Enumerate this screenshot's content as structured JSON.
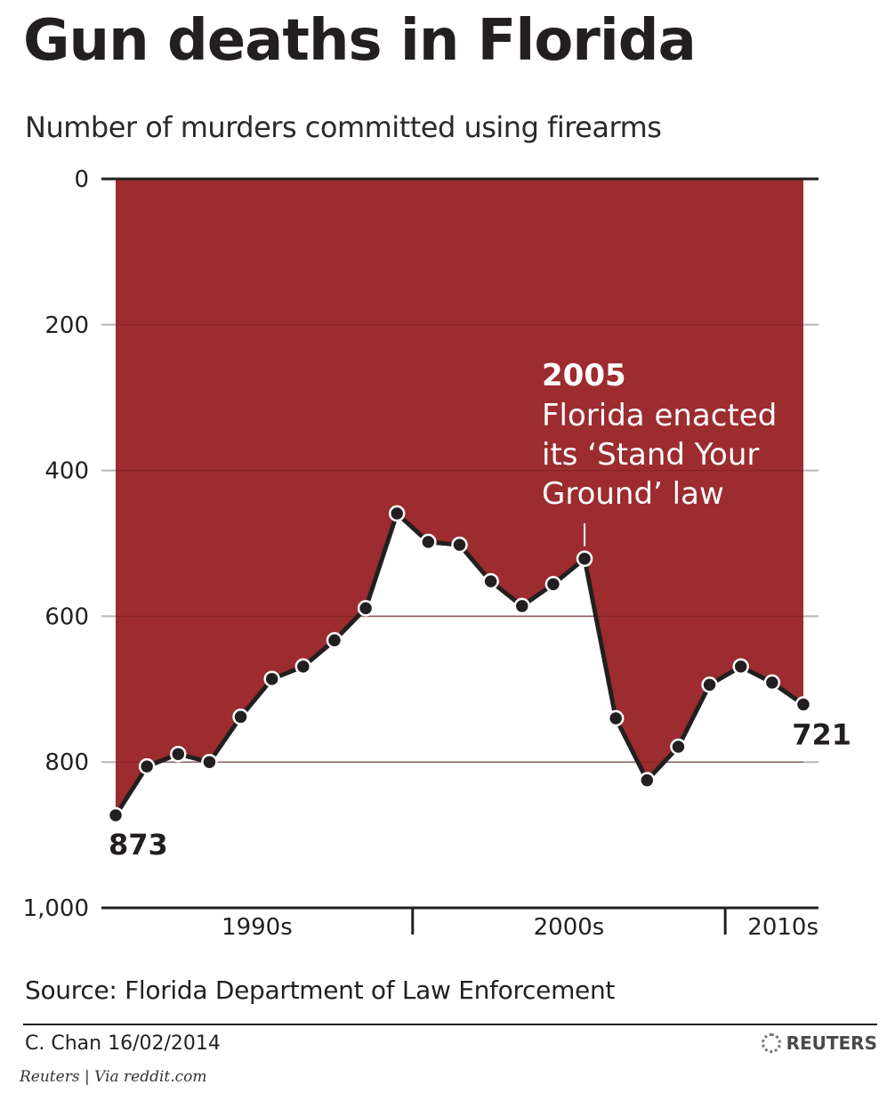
{
  "title": "Gun deaths in Florida",
  "subtitle": "Number of murders committed using firearms",
  "source": "Source: Florida Department of Law Enforcement",
  "byline": "C. Chan  16/02/2014",
  "brand": "REUTERS",
  "credit": "Reuters | Via reddit.com",
  "colors": {
    "fill": "#9c2c2f",
    "line": "#231f20",
    "grid": "#b5b5b5",
    "annotation": "#ffffff"
  },
  "chart_data": {
    "type": "area",
    "title": "Gun deaths in Florida",
    "subtitle": "Number of murders committed using firearms",
    "y_inverted": true,
    "ylim": [
      0,
      1000
    ],
    "yticks": [
      0,
      200,
      400,
      600,
      800,
      1000
    ],
    "ytick_labels": [
      "0",
      "200",
      "400",
      "600",
      "800",
      "1,000"
    ],
    "x": [
      1990,
      1991,
      1992,
      1993,
      1994,
      1995,
      1996,
      1997,
      1998,
      1999,
      2000,
      2001,
      2002,
      2003,
      2004,
      2005,
      2006,
      2007,
      2008,
      2009,
      2010,
      2011,
      2012
    ],
    "values": [
      873,
      806,
      789,
      800,
      738,
      686,
      669,
      633,
      589,
      459,
      498,
      502,
      552,
      586,
      556,
      521,
      740,
      825,
      779,
      694,
      669,
      691,
      721
    ],
    "decade_labels": [
      {
        "label": "1990s"
      },
      {
        "label": "2000s"
      },
      {
        "label": "2010s"
      }
    ],
    "start_label": "873",
    "end_label": "721",
    "annotation": {
      "x": 2005,
      "year": "2005",
      "lines": [
        "Florida enacted",
        "its ‘Stand Your",
        "Ground’ law"
      ]
    },
    "grid": true
  }
}
